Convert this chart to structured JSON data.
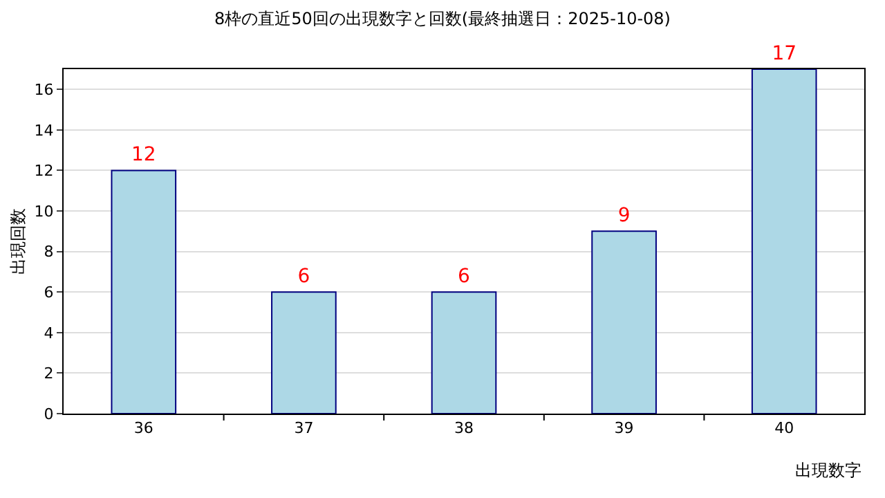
{
  "chart_data": {
    "type": "bar",
    "title": "8枠の直近50回の出現数字と回数(最終抽選日：2025-10-08)",
    "xlabel": "出現数字",
    "ylabel": "出現回数",
    "categories": [
      "36",
      "37",
      "38",
      "39",
      "40"
    ],
    "series": [
      {
        "color": "#add8e6",
        "values": [
          12,
          6,
          6,
          9,
          17
        ]
      }
    ],
    "ylim": [
      0,
      17
    ],
    "yticks": [
      0,
      2,
      4,
      6,
      8,
      10,
      12,
      14,
      16
    ],
    "grid": "y",
    "data_labels": true,
    "legend": false
  }
}
